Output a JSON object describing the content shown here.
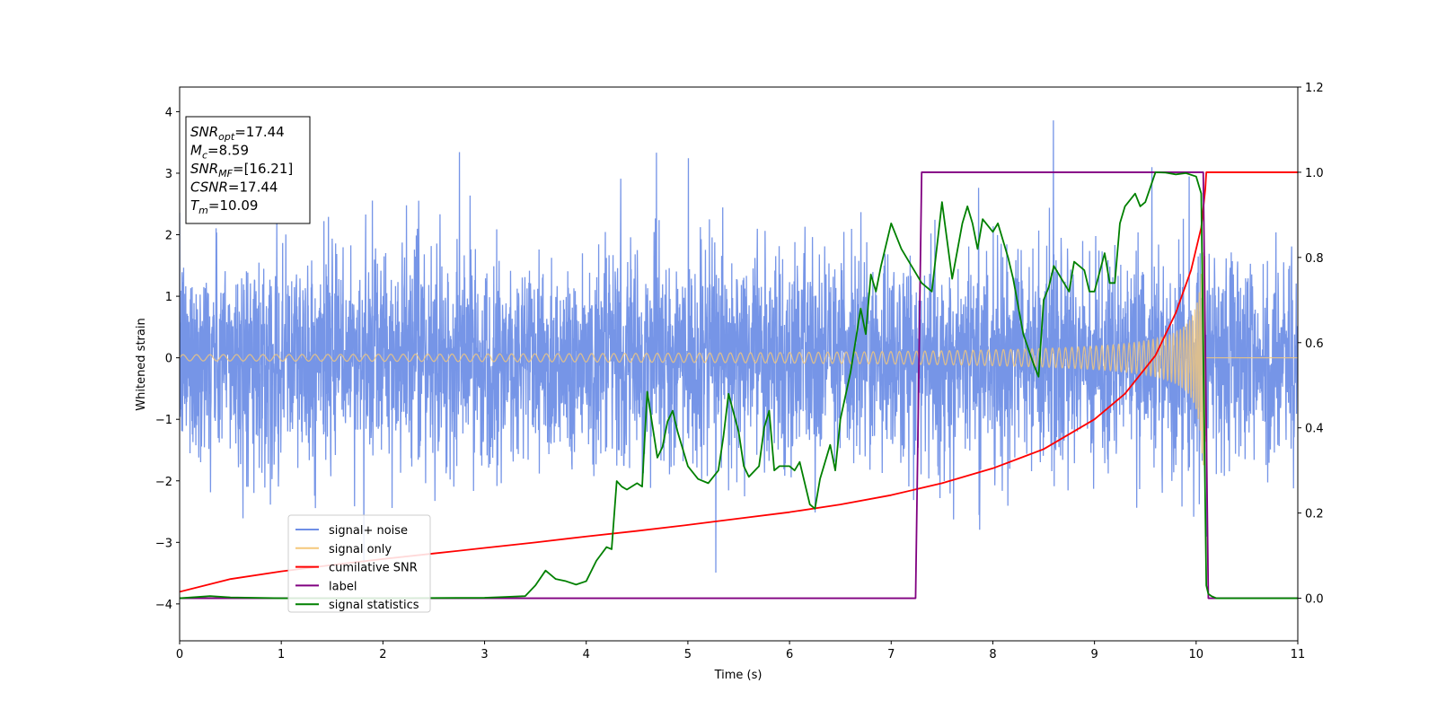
{
  "chart_data": {
    "type": "line",
    "xlabel": "Time (s)",
    "ylabel": "Whitened strain",
    "xlim": [
      0,
      11
    ],
    "ylim_left": [
      -4.6,
      4.4
    ],
    "ylim_right": [
      -0.1,
      1.2
    ],
    "x_ticks": [
      "0",
      "1",
      "2",
      "3",
      "4",
      "5",
      "6",
      "7",
      "8",
      "9",
      "10",
      "11"
    ],
    "y_ticks_left": [
      "4",
      "3",
      "2",
      "1",
      "0",
      "−1",
      "−2",
      "−3",
      "−4"
    ],
    "y_ticks_right": [
      "1.2",
      "1.0",
      "0.8",
      "0.6",
      "0.4",
      "0.2",
      "0.0"
    ],
    "grid": false,
    "legend_placement": "lower-left",
    "info_box": [
      {
        "base": "SNR",
        "sub": "opt",
        "value": "=17.44"
      },
      {
        "base": "M",
        "sub": "c",
        "value": "=8.59"
      },
      {
        "base": "SNR",
        "sub": "MF",
        "value": "=[16.21]"
      },
      {
        "base": "CSNR",
        "sub": "",
        "value": "=17.44"
      },
      {
        "base": "T",
        "sub": "m",
        "value": "=10.09"
      }
    ],
    "series": [
      {
        "name": "signal+ noise",
        "color": "#6f8fe6",
        "axis": "left",
        "kind": "noise",
        "noise_std": 0.85,
        "time_range": [
          0,
          11
        ]
      },
      {
        "name": "signal only",
        "color": "#f5c87a",
        "axis": "left",
        "kind": "chirp",
        "merger_time": 10.09,
        "amplitude_start": 0.05,
        "amplitude_end": 1.75
      },
      {
        "name": "cumilative SNR",
        "color": "#ff0000",
        "axis": "right",
        "x": [
          0,
          0.5,
          1,
          1.5,
          2,
          2.5,
          3,
          3.5,
          4,
          4.5,
          5,
          5.5,
          6,
          6.5,
          7,
          7.5,
          8,
          8.5,
          9,
          9.3,
          9.6,
          9.8,
          9.95,
          10.05,
          10.09,
          10.1,
          11
        ],
        "y": [
          0.015,
          0.045,
          0.063,
          0.078,
          0.092,
          0.105,
          0.118,
          0.131,
          0.145,
          0.158,
          0.172,
          0.187,
          0.202,
          0.22,
          0.242,
          0.27,
          0.305,
          0.35,
          0.42,
          0.48,
          0.57,
          0.67,
          0.77,
          0.87,
          0.96,
          1.0,
          1.0
        ]
      },
      {
        "name": "label",
        "color": "#800080",
        "axis": "right",
        "x": [
          0,
          7.24,
          7.3,
          10.07,
          10.12,
          11
        ],
        "y": [
          0,
          0,
          1,
          1,
          0,
          0
        ]
      },
      {
        "name": "signal statistics",
        "color": "#008000",
        "axis": "right",
        "x": [
          0,
          0.3,
          0.5,
          1,
          2,
          3,
          3.2,
          3.4,
          3.5,
          3.6,
          3.7,
          3.8,
          3.9,
          4.0,
          4.1,
          4.2,
          4.25,
          4.3,
          4.35,
          4.4,
          4.5,
          4.55,
          4.6,
          4.7,
          4.75,
          4.8,
          4.85,
          4.9,
          5.0,
          5.1,
          5.2,
          5.3,
          5.35,
          5.4,
          5.5,
          5.55,
          5.6,
          5.7,
          5.75,
          5.8,
          5.85,
          5.9,
          6.0,
          6.05,
          6.1,
          6.2,
          6.25,
          6.3,
          6.4,
          6.45,
          6.5,
          6.6,
          6.7,
          6.75,
          6.8,
          6.85,
          6.9,
          7.0,
          7.1,
          7.15,
          7.2,
          7.3,
          7.4,
          7.5,
          7.6,
          7.7,
          7.75,
          7.8,
          7.85,
          7.9,
          8.0,
          8.05,
          8.1,
          8.15,
          8.2,
          8.3,
          8.4,
          8.45,
          8.5,
          8.55,
          8.6,
          8.7,
          8.75,
          8.8,
          8.9,
          8.95,
          9.0,
          9.1,
          9.15,
          9.2,
          9.25,
          9.3,
          9.4,
          9.45,
          9.5,
          9.6,
          9.7,
          9.8,
          9.9,
          10.0,
          10.05,
          10.1,
          10.12,
          10.15,
          10.2,
          11
        ],
        "y": [
          0,
          0.005,
          0.002,
          0,
          0,
          0.001,
          0.003,
          0.005,
          0.03,
          0.065,
          0.045,
          0.04,
          0.032,
          0.04,
          0.088,
          0.12,
          0.115,
          0.275,
          0.262,
          0.255,
          0.27,
          0.262,
          0.485,
          0.33,
          0.355,
          0.415,
          0.44,
          0.39,
          0.31,
          0.28,
          0.27,
          0.3,
          0.38,
          0.48,
          0.39,
          0.31,
          0.285,
          0.31,
          0.4,
          0.44,
          0.3,
          0.31,
          0.31,
          0.3,
          0.32,
          0.22,
          0.21,
          0.28,
          0.36,
          0.3,
          0.42,
          0.53,
          0.68,
          0.62,
          0.76,
          0.72,
          0.78,
          0.88,
          0.82,
          0.8,
          0.78,
          0.74,
          0.72,
          0.93,
          0.75,
          0.88,
          0.92,
          0.88,
          0.82,
          0.89,
          0.86,
          0.88,
          0.84,
          0.8,
          0.75,
          0.62,
          0.55,
          0.52,
          0.7,
          0.73,
          0.78,
          0.74,
          0.72,
          0.79,
          0.77,
          0.72,
          0.72,
          0.81,
          0.74,
          0.74,
          0.88,
          0.92,
          0.95,
          0.92,
          0.93,
          1.0,
          0.999,
          0.995,
          0.998,
          0.99,
          0.95,
          0.03,
          0.01,
          0.005,
          0,
          0
        ]
      }
    ]
  }
}
